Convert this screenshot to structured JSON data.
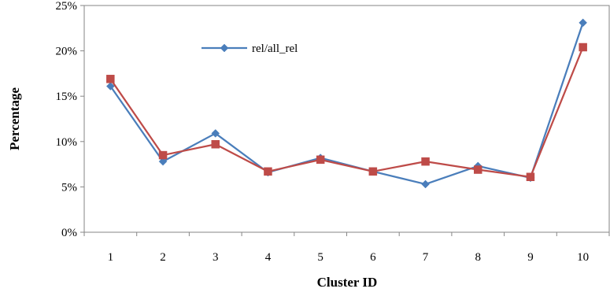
{
  "chart_data": {
    "type": "line",
    "title": "",
    "xlabel": "Cluster ID",
    "ylabel": "Percentage",
    "categories": [
      "1",
      "2",
      "3",
      "4",
      "5",
      "6",
      "7",
      "8",
      "9",
      "10"
    ],
    "ylim": [
      0,
      25
    ],
    "yticks": [
      "0%",
      "5%",
      "10%",
      "15%",
      "20%",
      "25%"
    ],
    "grid": false,
    "legend": "top-left-inside",
    "series": [
      {
        "name": "rel/all_rel",
        "color": "#4a7ebb",
        "marker": "diamond",
        "values": [
          16.1,
          7.8,
          10.9,
          6.6,
          8.2,
          6.7,
          5.3,
          7.3,
          6.0,
          23.1
        ]
      },
      {
        "name": "",
        "color": "#be4b48",
        "marker": "square",
        "values": [
          16.9,
          8.5,
          9.7,
          6.7,
          8.0,
          6.7,
          7.8,
          6.9,
          6.1,
          20.4
        ]
      }
    ]
  }
}
